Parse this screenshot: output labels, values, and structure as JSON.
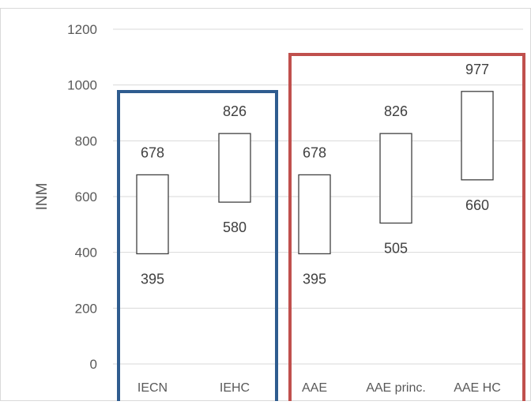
{
  "chart_data": {
    "type": "floating-bar",
    "ylabel": "INM",
    "ylim": [
      0,
      1200
    ],
    "yticks": [
      0,
      200,
      400,
      600,
      800,
      1000,
      1200
    ],
    "grid": true,
    "categories": [
      "IECN",
      "IEHC",
      "AAE",
      "AAE princ.",
      "AAE HC"
    ],
    "ranges": [
      {
        "category": "IECN",
        "min": 395,
        "max": 678
      },
      {
        "category": "IEHC",
        "min": 580,
        "max": 826
      },
      {
        "category": "AAE",
        "min": 395,
        "max": 678
      },
      {
        "category": "AAE princ.",
        "min": 505,
        "max": 826
      },
      {
        "category": "AAE HC",
        "min": 660,
        "max": 977
      }
    ],
    "groups": [
      {
        "members": [
          "IECN",
          "IEHC"
        ],
        "color": "#2f5c8f"
      },
      {
        "members": [
          "AAE",
          "AAE princ.",
          "AAE HC"
        ],
        "color": "#c0504d"
      }
    ]
  }
}
